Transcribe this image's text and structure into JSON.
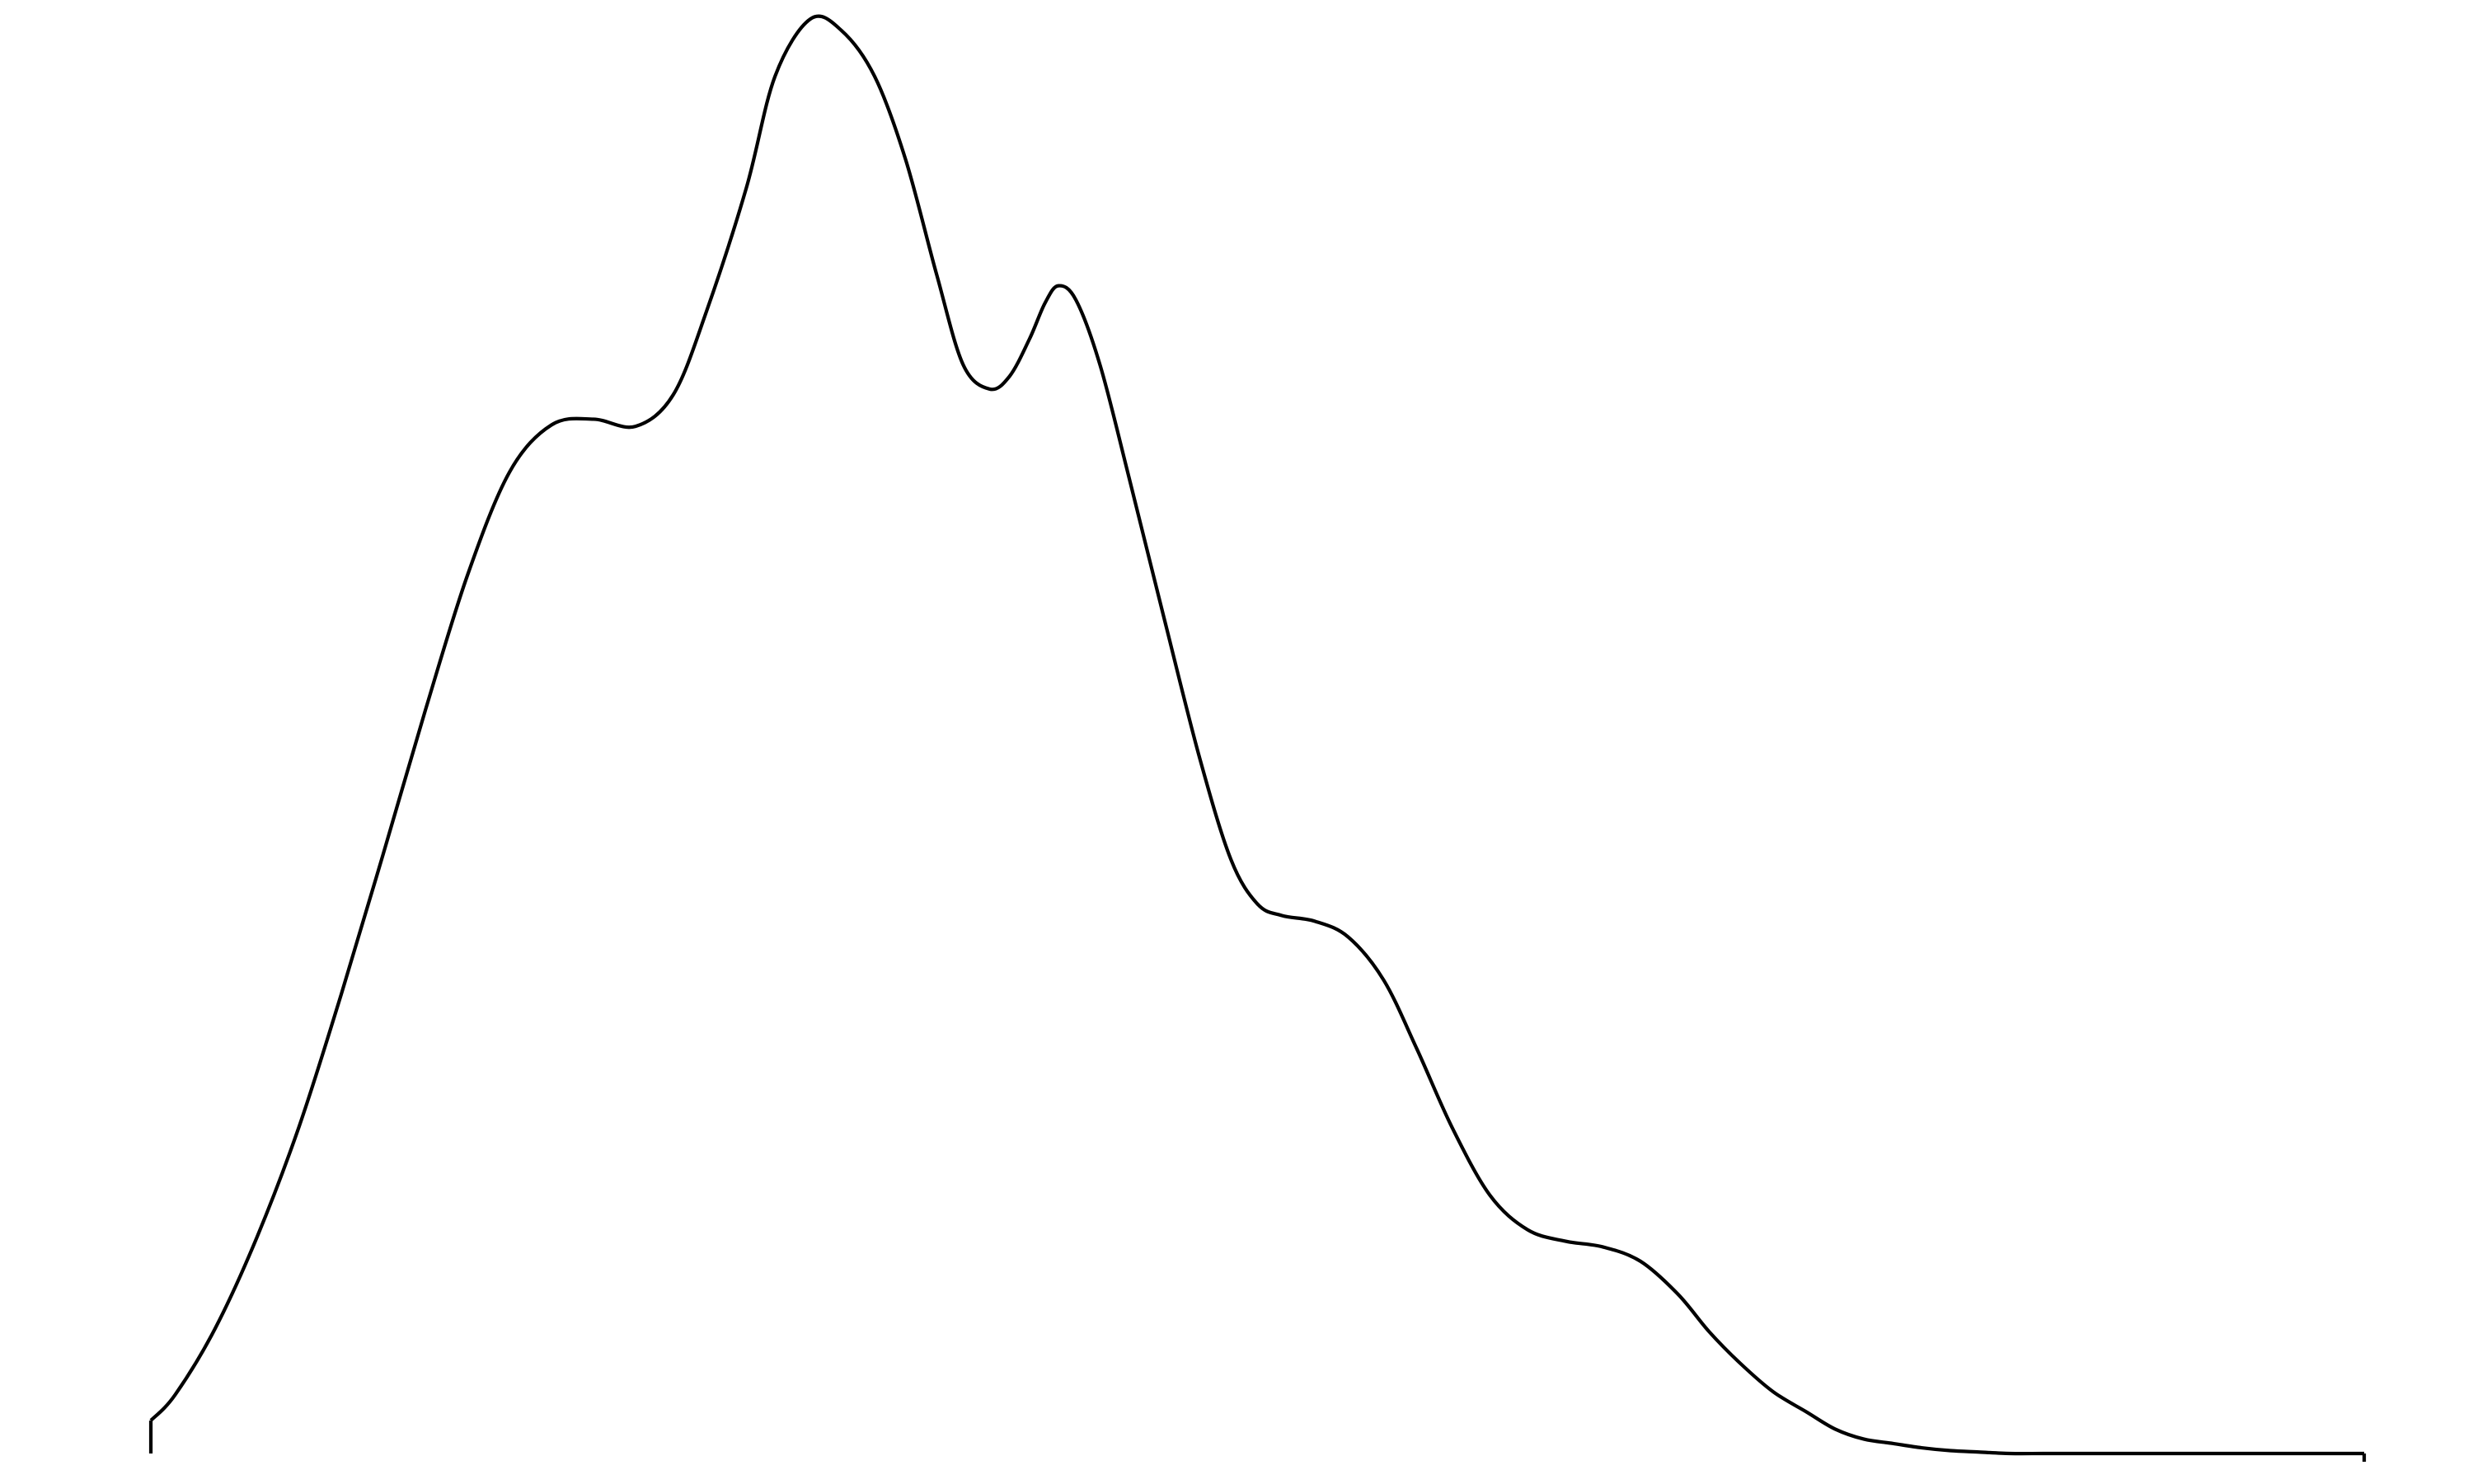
{
  "chart_data": {
    "type": "line",
    "title": "",
    "xlabel": "",
    "ylabel": "",
    "grid": false,
    "axes_visible": false,
    "legend": false,
    "xlim": [
      0,
      1
    ],
    "ylim": [
      0,
      1
    ],
    "line_color": "#000000",
    "background_color": "#ffffff",
    "series": [
      {
        "x": [
          0.0,
          0.011,
          0.029,
          0.048,
          0.067,
          0.086,
          0.105,
          0.124,
          0.143,
          0.162,
          0.181,
          0.2,
          0.219,
          0.236,
          0.251,
          0.269,
          0.282,
          0.298,
          0.312,
          0.327,
          0.341,
          0.355,
          0.367,
          0.379,
          0.388,
          0.397,
          0.404,
          0.41,
          0.418,
          0.429,
          0.442,
          0.458,
          0.474,
          0.488,
          0.5,
          0.511,
          0.526,
          0.541,
          0.557,
          0.572,
          0.588,
          0.605,
          0.622,
          0.639,
          0.656,
          0.673,
          0.69,
          0.704,
          0.718,
          0.733,
          0.748,
          0.761,
          0.774,
          0.787,
          0.8,
          0.813,
          0.826,
          0.84,
          0.855,
          0.871,
          0.887,
          0.902,
          0.918,
          0.934,
          0.951,
          0.97,
          0.986,
          1.0
        ],
        "y": [
          0.023,
          0.041,
          0.087,
          0.151,
          0.228,
          0.32,
          0.418,
          0.518,
          0.612,
          0.684,
          0.717,
          0.721,
          0.716,
          0.738,
          0.796,
          0.882,
          0.96,
          1.0,
          0.992,
          0.96,
          0.902,
          0.822,
          0.759,
          0.742,
          0.751,
          0.777,
          0.802,
          0.814,
          0.804,
          0.758,
          0.68,
          0.581,
          0.484,
          0.414,
          0.383,
          0.375,
          0.371,
          0.36,
          0.33,
          0.282,
          0.227,
          0.18,
          0.156,
          0.148,
          0.144,
          0.134,
          0.111,
          0.085,
          0.063,
          0.043,
          0.029,
          0.017,
          0.01,
          0.007,
          0.004,
          0.002,
          0.001,
          0.0,
          0.0,
          0.0,
          0.0,
          0.0,
          0.0,
          0.0,
          0.0,
          0.0,
          0.0,
          0.0
        ]
      }
    ]
  }
}
